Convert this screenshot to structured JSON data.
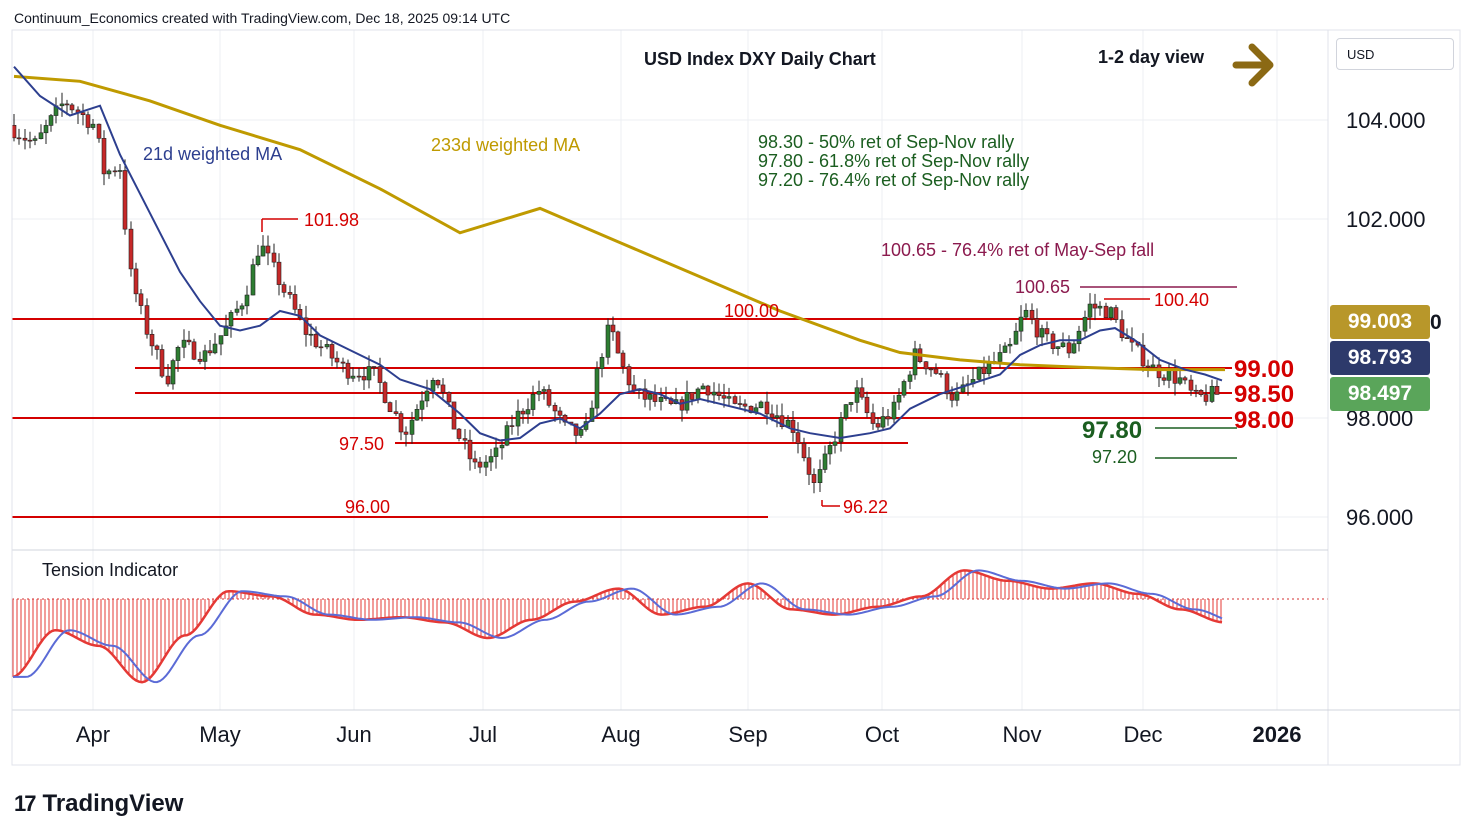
{
  "header": {
    "created_by": "Continuum_Economics created with TradingView.com, Dec 18, 2025 09:14 UTC",
    "title": "USD Index DXY Daily Chart",
    "view_label": "1-2 day view"
  },
  "currency_label": "USD",
  "brand": {
    "logo": "17",
    "name": "TradingView"
  },
  "colors": {
    "up_candle": "#2e7d32",
    "down_candle": "#c62828",
    "ma21": "#2d3f8f",
    "ma233": "#bf9a00",
    "level_line": "#d40000",
    "fib_green": "#1b5e20",
    "annotation_purple": "#8b1a4e",
    "tag_233ma": "#b8972a",
    "tag_21ma": "#2d3a6b",
    "tag_price": "#5aa55a",
    "arrow": "#8b6914"
  },
  "annotations": {
    "ma21_label": "21d weighted MA",
    "ma233_label": "233d weighted MA",
    "fib_lines": [
      "98.30 - 50% ret of Sep-Nov rally",
      "97.80 - 61.8% ret of Sep-Nov rally",
      "97.20 - 76.4% ret of Sep-Nov rally"
    ],
    "retracement_note": "100.65 - 76.4% ret of May-Sep fall",
    "tension_label": "Tension Indicator"
  },
  "price_tags": {
    "ma233": "99.003",
    "ma21": "98.793",
    "last": "98.497",
    "hidden_suffix": "0"
  },
  "chart_data": {
    "type": "candlestick",
    "title": "USD Index DXY Daily Chart",
    "x_tick_labels": [
      "Apr",
      "May",
      "Jun",
      "Jul",
      "Aug",
      "Sep",
      "Oct",
      "Nov",
      "Dec",
      "2026"
    ],
    "y_tick_labels": [
      "104.000",
      "102.000",
      "98.000",
      "96.000"
    ],
    "y_ticks": [
      104,
      102,
      98,
      96
    ],
    "ylim": [
      95.35,
      105.95
    ],
    "grid": true,
    "level_labels": [
      {
        "text": "101.98",
        "value": 101.98,
        "color": "level_line",
        "bold": false
      },
      {
        "text": "100.00",
        "value": 100.0,
        "color": "level_line",
        "bold": false
      },
      {
        "text": "97.50",
        "value": 97.5,
        "color": "level_line",
        "bold": false
      },
      {
        "text": "96.00",
        "value": 96.0,
        "color": "level_line",
        "bold": false
      },
      {
        "text": "96.22",
        "value": 96.22,
        "color": "level_line",
        "bold": false
      },
      {
        "text": "100.65",
        "value": 100.65,
        "color": "annotation_purple",
        "bold": false
      },
      {
        "text": "100.40",
        "value": 100.4,
        "color": "level_line",
        "bold": false
      },
      {
        "text": "99.00",
        "value": 99.0,
        "color": "level_line",
        "bold": true
      },
      {
        "text": "98.50",
        "value": 98.5,
        "color": "level_line",
        "bold": true
      },
      {
        "text": "98.00",
        "value": 98.0,
        "color": "level_line",
        "bold": true
      },
      {
        "text": "97.80",
        "value": 97.8,
        "color": "fib_green",
        "bold": true
      },
      {
        "text": "97.20",
        "value": 97.2,
        "color": "fib_green",
        "bold": false
      }
    ],
    "series": [
      {
        "name": "21d weighted MA",
        "points": [
          [
            104.2,
            105.0
          ],
          [
            103.6,
            104.4
          ],
          [
            102.6,
            103.6
          ],
          [
            101.2,
            102.6
          ],
          [
            100.0,
            101.6
          ],
          [
            99.6,
            100.8
          ],
          [
            99.9,
            100.4
          ],
          [
            100.1,
            100.2
          ],
          [
            99.7,
            99.9
          ],
          [
            99.4,
            99.5
          ],
          [
            98.3,
            99.0
          ],
          [
            97.6,
            98.2
          ],
          [
            97.5,
            97.6
          ],
          [
            97.7,
            97.6
          ],
          [
            98.5,
            98.1
          ],
          [
            98.6,
            98.6
          ],
          [
            98.2,
            98.4
          ],
          [
            97.9,
            98.1
          ],
          [
            97.8,
            97.9
          ],
          [
            97.6,
            97.8
          ],
          [
            97.4,
            97.7
          ],
          [
            97.6,
            97.7
          ],
          [
            97.9,
            97.8
          ],
          [
            98.5,
            98.2
          ],
          [
            98.6,
            98.5
          ],
          [
            99.2,
            98.9
          ],
          [
            99.5,
            99.3
          ],
          [
            99.7,
            99.6
          ],
          [
            99.9,
            99.8
          ],
          [
            99.8,
            99.8
          ],
          [
            99.6,
            99.7
          ],
          [
            99.4,
            99.6
          ],
          [
            99.2,
            99.3
          ],
          [
            98.7,
            99.0
          ],
          [
            98.5,
            98.8
          ],
          [
            98.4,
            98.6
          ],
          [
            98.5,
            98.5
          ],
          [
            98.4,
            98.4
          ],
          [
            98.3,
            98.3
          ],
          [
            98.4,
            98.3
          ],
          [
            98.45,
            98.3
          ],
          [
            98.5,
            98.4
          ]
        ]
      }
    ],
    "tension_indicator": {
      "series_values": [
        -3.0,
        -1.2,
        -1.8,
        -3.2,
        -1.4,
        0.3,
        0.1,
        -0.6,
        -0.8,
        -0.7,
        -0.9,
        -1.5,
        -0.8,
        -0.1,
        0.4,
        -0.6,
        -0.3,
        0.6,
        -0.4,
        -0.6,
        -0.3,
        0.1,
        1.1,
        0.7,
        0.4,
        0.6,
        0.2,
        -0.4,
        -0.9
      ]
    }
  }
}
